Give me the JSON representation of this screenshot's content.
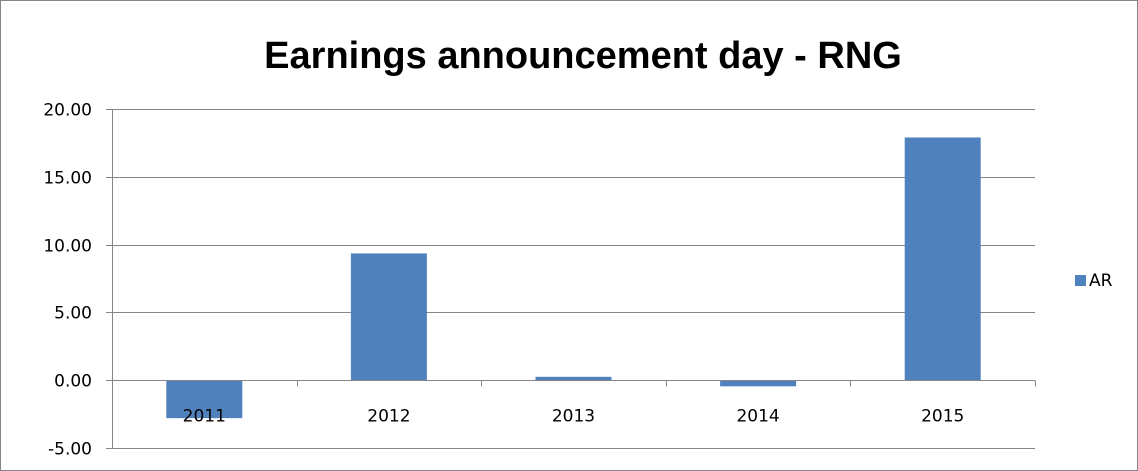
{
  "chart_data": {
    "type": "bar",
    "title": "Earnings announcement day - RNG",
    "categories": [
      "2011",
      "2012",
      "2013",
      "2014",
      "2015"
    ],
    "series": [
      {
        "name": "AR",
        "values": [
          -2.8,
          9.35,
          0.25,
          -0.45,
          17.9
        ],
        "color": "#4F81BD"
      }
    ],
    "ylim": [
      -5,
      20
    ],
    "yticks": [
      "-5.00",
      "0.00",
      "5.00",
      "10.00",
      "15.00",
      "20.00"
    ],
    "ytick_values": [
      -5,
      0,
      5,
      10,
      15,
      20
    ],
    "grid": true,
    "legend": "right",
    "colors": {
      "axis": "#868686",
      "grid": "#868686",
      "bar": "#4F81BD"
    }
  }
}
